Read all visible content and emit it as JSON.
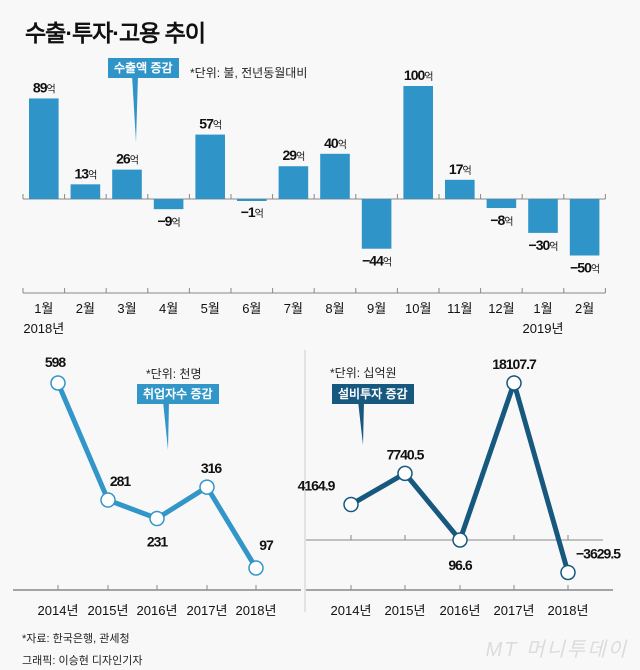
{
  "title": "수출·투자·고용 추이",
  "colors": {
    "bar": "#2f95c9",
    "employment": "#3296c8",
    "investment": "#17587f",
    "axis": "#888888"
  },
  "chart_data": [
    {
      "type": "bar",
      "title": "수출액 증감",
      "unit_note": "*단위: 불, 전년동월대비",
      "value_suffix": "억",
      "categories": [
        "1월",
        "2월",
        "3월",
        "4월",
        "5월",
        "6월",
        "7월",
        "8월",
        "9월",
        "10월",
        "11월",
        "12월",
        "1월",
        "2월"
      ],
      "year_labels": [
        {
          "index": 0,
          "label": "2018년"
        },
        {
          "index": 12,
          "label": "2019년"
        }
      ],
      "values": [
        89,
        13,
        26,
        -9,
        57,
        -1,
        29,
        40,
        -44,
        100,
        17,
        -8,
        -30,
        -50
      ],
      "ylim": [
        -50,
        100
      ],
      "xlabel": "",
      "ylabel": "",
      "grid": false
    },
    {
      "type": "line",
      "title": "취업자수 증감",
      "unit_note": "*단위: 천명",
      "categories": [
        "2014년",
        "2015년",
        "2016년",
        "2017년",
        "2018년"
      ],
      "values": [
        598,
        281,
        231,
        316,
        97
      ],
      "labels": [
        "598",
        "281",
        "231",
        "316",
        "97"
      ],
      "ylim": [
        0,
        650
      ],
      "grid": false
    },
    {
      "type": "line",
      "title": "설비투자 증감",
      "unit_note": "*단위: 십억원",
      "categories": [
        "2014년",
        "2015년",
        "2016년",
        "2017년",
        "2018년"
      ],
      "values": [
        4164.9,
        7740.5,
        96.6,
        18107.7,
        -3629.5
      ],
      "labels": [
        "4164.9",
        "7740.5",
        "96.6",
        "18107.7",
        "−3629.5"
      ],
      "ylim": [
        -4500,
        19000
      ],
      "grid": false
    }
  ],
  "footer": {
    "source": "*자료: 한국은행, 관세청",
    "credit": "그래픽: 이승현 디자인기자",
    "logo": "MT 머니투데이"
  }
}
